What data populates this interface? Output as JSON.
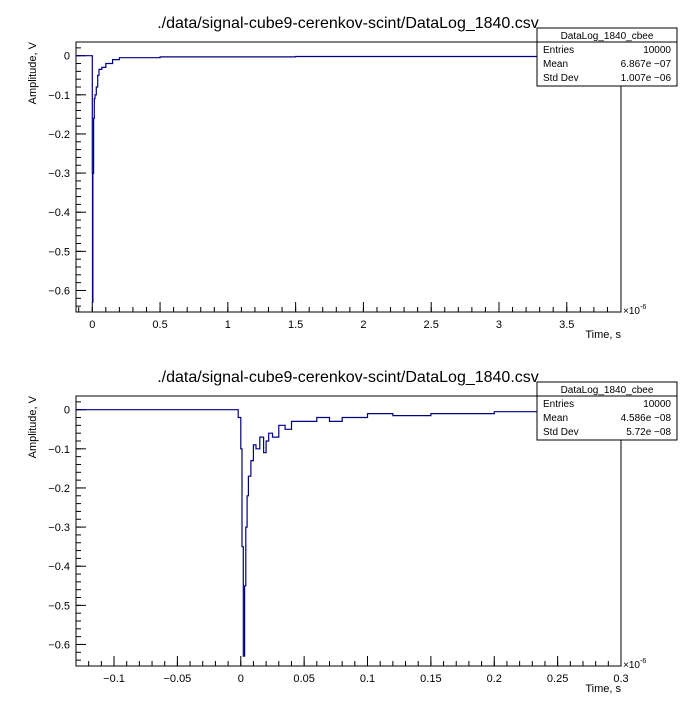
{
  "chart_data": [
    {
      "type": "line",
      "title": "./data/signal-cube9-cerenkov-scint/DataLog_1840.csv",
      "xlabel": "Time, s",
      "ylabel": "Amplitude, V",
      "x_exponent_label": "×10",
      "x_exponent_power": "-6",
      "xlim": [
        -0.12,
        3.9
      ],
      "ylim": [
        -0.655,
        0.035
      ],
      "x_ticks": [
        0,
        0.5,
        1,
        1.5,
        2,
        2.5,
        3,
        3.5
      ],
      "x_tick_labels": [
        "0",
        "0.5",
        "1",
        "1.5",
        "2",
        "2.5",
        "3",
        "3.5"
      ],
      "y_ticks": [
        0,
        -0.1,
        -0.2,
        -0.3,
        -0.4,
        -0.5,
        -0.6
      ],
      "y_tick_labels": [
        "0",
        "−0.1",
        "−0.2",
        "−0.3",
        "−0.4",
        "−0.5",
        "−0.6"
      ],
      "series": [
        {
          "color": "#000080",
          "x": [
            -0.12,
            -0.08,
            -0.05,
            -0.02,
            -0.005,
            0,
            0.002,
            0.005,
            0.01,
            0.015,
            0.02,
            0.03,
            0.04,
            0.05,
            0.07,
            0.1,
            0.15,
            0.2,
            0.3,
            0.5,
            0.8,
            1.0,
            1.5,
            2.0,
            2.5,
            3.0,
            3.5,
            3.9
          ],
          "y": [
            0.0,
            0.0,
            0.0,
            0.0,
            0.0,
            -0.3,
            -0.63,
            -0.3,
            -0.16,
            -0.11,
            -0.1,
            -0.08,
            -0.05,
            -0.035,
            -0.03,
            -0.02,
            -0.01,
            -0.005,
            -0.005,
            -0.003,
            -0.003,
            -0.003,
            -0.002,
            -0.002,
            -0.002,
            -0.002,
            -0.002,
            -0.002
          ]
        }
      ],
      "grid": false,
      "legend": "top-right",
      "stats": {
        "title": "DataLog_1840_cbee",
        "rows": [
          {
            "label": "Entries",
            "value": "10000"
          },
          {
            "label": "Mean",
            "value": "6.867e −07"
          },
          {
            "label": "Std Dev",
            "value": "1.007e −06"
          }
        ]
      }
    },
    {
      "type": "line",
      "title": "./data/signal-cube9-cerenkov-scint/DataLog_1840.csv",
      "xlabel": "Time, s",
      "ylabel": "Amplitude, V",
      "x_exponent_label": "×10",
      "x_exponent_power": "-6",
      "xlim": [
        -0.13,
        0.3
      ],
      "ylim": [
        -0.655,
        0.035
      ],
      "x_ticks": [
        -0.1,
        -0.05,
        0,
        0.05,
        0.1,
        0.15,
        0.2,
        0.25,
        0.3
      ],
      "x_tick_labels": [
        "−0.1",
        "−0.05",
        "0",
        "0.05",
        "0.1",
        "0.15",
        "0.2",
        "0.25",
        "0.3"
      ],
      "y_ticks": [
        0,
        -0.1,
        -0.2,
        -0.3,
        -0.4,
        -0.5,
        -0.6
      ],
      "y_tick_labels": [
        "0",
        "−0.1",
        "−0.2",
        "−0.3",
        "−0.4",
        "−0.5",
        "−0.6"
      ],
      "series": [
        {
          "color": "#000080",
          "x": [
            -0.13,
            -0.1,
            -0.05,
            -0.01,
            -0.002,
            0.0,
            0.001,
            0.002,
            0.003,
            0.004,
            0.005,
            0.006,
            0.008,
            0.01,
            0.012,
            0.015,
            0.018,
            0.02,
            0.022,
            0.025,
            0.03,
            0.035,
            0.04,
            0.05,
            0.06,
            0.07,
            0.08,
            0.1,
            0.12,
            0.15,
            0.2,
            0.25,
            0.3
          ],
          "y": [
            0.0,
            0.0,
            0.0,
            0.0,
            -0.02,
            -0.1,
            -0.35,
            -0.63,
            -0.45,
            -0.3,
            -0.22,
            -0.17,
            -0.13,
            -0.09,
            -0.1,
            -0.07,
            -0.11,
            -0.08,
            -0.06,
            -0.07,
            -0.04,
            -0.05,
            -0.03,
            -0.03,
            -0.02,
            -0.03,
            -0.02,
            -0.01,
            -0.015,
            -0.01,
            -0.005,
            -0.005,
            -0.003
          ]
        }
      ],
      "grid": false,
      "legend": "top-right",
      "stats": {
        "title": "DataLog_1840_cbee",
        "rows": [
          {
            "label": "Entries",
            "value": "10000"
          },
          {
            "label": "Mean",
            "value": "4.586e −08"
          },
          {
            "label": "Std Dev",
            "value": "5.72e −08"
          }
        ]
      }
    }
  ]
}
